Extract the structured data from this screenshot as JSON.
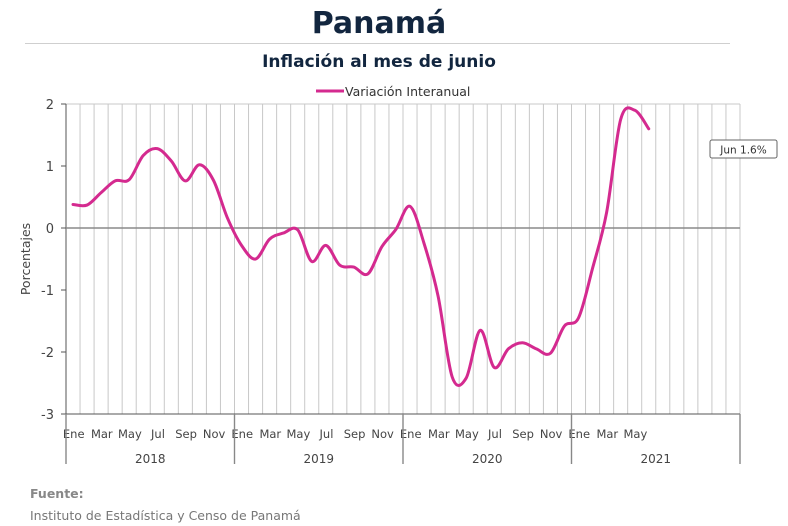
{
  "header": {
    "title": "Panamá",
    "subtitle": "Inflación al mes de junio"
  },
  "footer": {
    "label": "Fuente:",
    "source": "Instituto de Estadística y Censo de Panamá"
  },
  "colors": {
    "series": "#d42a8f",
    "grid": "#c8c8c8",
    "zero_line": "#8a8a8a",
    "title": "#12263f"
  },
  "chart_data": {
    "type": "line",
    "title": "Inflación al mes de junio",
    "ylabel": "Porcentajes",
    "xlabel": "",
    "ylim": [
      -3,
      2
    ],
    "yticks": [
      2,
      1,
      0,
      -1,
      -2,
      -3
    ],
    "grid": true,
    "legend_position": "top-center",
    "month_labels": [
      "Ene",
      "Mar",
      "May",
      "Jul",
      "Sep",
      "Nov"
    ],
    "years": [
      "2018",
      "2019",
      "2020",
      "2021"
    ],
    "x": [
      "2018-01",
      "2018-02",
      "2018-03",
      "2018-04",
      "2018-05",
      "2018-06",
      "2018-07",
      "2018-08",
      "2018-09",
      "2018-10",
      "2018-11",
      "2018-12",
      "2019-01",
      "2019-02",
      "2019-03",
      "2019-04",
      "2019-05",
      "2019-06",
      "2019-07",
      "2019-08",
      "2019-09",
      "2019-10",
      "2019-11",
      "2019-12",
      "2020-01",
      "2020-02",
      "2020-03",
      "2020-04",
      "2020-05",
      "2020-06",
      "2020-07",
      "2020-08",
      "2020-09",
      "2020-10",
      "2020-11",
      "2020-12",
      "2021-01",
      "2021-02",
      "2021-03",
      "2021-04",
      "2021-05",
      "2021-06"
    ],
    "series": [
      {
        "name": "Variación Interanual",
        "values": [
          0.38,
          0.37,
          0.57,
          0.76,
          0.78,
          1.17,
          1.28,
          1.08,
          0.76,
          1.02,
          0.77,
          0.16,
          -0.28,
          -0.5,
          -0.18,
          -0.08,
          -0.03,
          -0.54,
          -0.28,
          -0.6,
          -0.63,
          -0.74,
          -0.3,
          -0.02,
          0.35,
          -0.25,
          -1.1,
          -2.4,
          -2.42,
          -1.65,
          -2.25,
          -1.95,
          -1.85,
          -1.95,
          -2.02,
          -1.58,
          -1.45,
          -0.65,
          0.25,
          1.75,
          1.9,
          1.6
        ]
      }
    ],
    "annotation": "Jun 1.6%"
  }
}
